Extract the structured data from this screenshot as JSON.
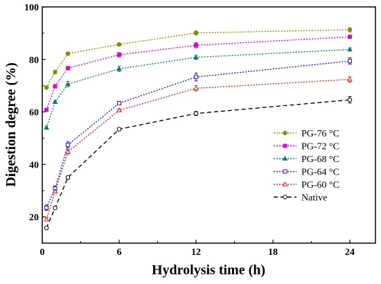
{
  "chart_data": {
    "type": "line",
    "title": "",
    "xlabel": "Hydrolysis time (h)",
    "ylabel": "Digestion degree (%)",
    "xlim": [
      0,
      26
    ],
    "ylim": [
      10,
      100
    ],
    "xticks": [
      0,
      6,
      12,
      18,
      24
    ],
    "yticks": [
      20,
      40,
      60,
      80,
      100
    ],
    "grid": false,
    "legend_position": "lower-right",
    "x": [
      0.33,
      1,
      2,
      6,
      12,
      24
    ],
    "series": [
      {
        "name": "PG-76 °C",
        "color": "#8b8b00",
        "dash": "dotted",
        "marker": "circle-filled",
        "values": [
          69.3,
          75.2,
          82.2,
          85.7,
          90.1,
          91.3
        ],
        "errors": [
          0.5,
          0.6,
          0.5,
          0.6,
          0.8,
          0.8
        ]
      },
      {
        "name": "PG-72 °C",
        "color": "#e000e0",
        "dash": "dotted",
        "marker": "square-filled",
        "values": [
          60.8,
          69.8,
          76.7,
          81.8,
          85.4,
          88.6
        ],
        "errors": [
          0.5,
          0.5,
          0.5,
          0.8,
          1.0,
          0.6
        ]
      },
      {
        "name": "PG-68 °C",
        "color": "#007b7b",
        "dash": "dotted",
        "marker": "triangle-filled",
        "values": [
          54.0,
          63.8,
          70.6,
          76.4,
          80.8,
          83.8
        ],
        "errors": [
          0.6,
          0.6,
          1.0,
          1.0,
          0.8,
          0.6
        ]
      },
      {
        "name": "PG-64 °C",
        "color": "#1515e0",
        "dash": "dotted",
        "marker": "square-open",
        "values": [
          23.5,
          30.8,
          47.4,
          63.3,
          73.3,
          79.4
        ],
        "errors": [
          1.0,
          1.0,
          1.2,
          0.6,
          1.5,
          1.2
        ]
      },
      {
        "name": "PG-60 °C",
        "color": "#e02020",
        "dash": "dotted",
        "marker": "triangle-open",
        "values": [
          19.0,
          29.7,
          44.8,
          60.6,
          69.0,
          72.4
        ],
        "errors": [
          0.6,
          0.6,
          0.8,
          0.6,
          1.0,
          1.0
        ]
      },
      {
        "name": "Native",
        "color": "#000000",
        "dash": "dashed",
        "marker": "circle-open",
        "values": [
          15.8,
          23.4,
          35.0,
          53.4,
          59.4,
          64.6
        ],
        "errors": [
          0.5,
          0.5,
          0.6,
          0.6,
          0.8,
          1.2
        ]
      }
    ]
  }
}
